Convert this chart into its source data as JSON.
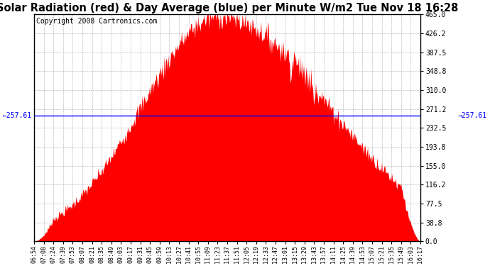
{
  "title": "Solar Radiation (red) & Day Average (blue) per Minute W/m2 Tue Nov 18 16:28",
  "copyright": "Copyright 2008 Cartronics.com",
  "day_average": 257.61,
  "y_max": 465.0,
  "y_min": 0.0,
  "y_ticks": [
    0.0,
    38.8,
    77.5,
    116.2,
    155.0,
    193.8,
    232.5,
    271.2,
    310.0,
    348.8,
    387.5,
    426.2,
    465.0
  ],
  "x_labels": [
    "06:54",
    "07:08",
    "07:24",
    "07:39",
    "07:53",
    "08:07",
    "08:21",
    "08:35",
    "08:49",
    "09:03",
    "09:17",
    "09:31",
    "09:45",
    "09:59",
    "10:13",
    "10:27",
    "10:41",
    "10:55",
    "11:09",
    "11:23",
    "11:37",
    "11:51",
    "12:05",
    "12:19",
    "12:33",
    "12:47",
    "13:01",
    "13:15",
    "13:29",
    "13:43",
    "13:57",
    "14:11",
    "14:25",
    "14:39",
    "14:53",
    "15:07",
    "15:21",
    "15:35",
    "15:49",
    "16:03",
    "16:17"
  ],
  "area_color": "#FF0000",
  "line_color": "#0000FF",
  "background_color": "#FFFFFF",
  "grid_color": "#999999",
  "title_fontsize": 10.5,
  "copyright_fontsize": 7,
  "avg_label_fontsize": 7,
  "tick_fontsize": 7,
  "x_tick_fontsize": 6
}
